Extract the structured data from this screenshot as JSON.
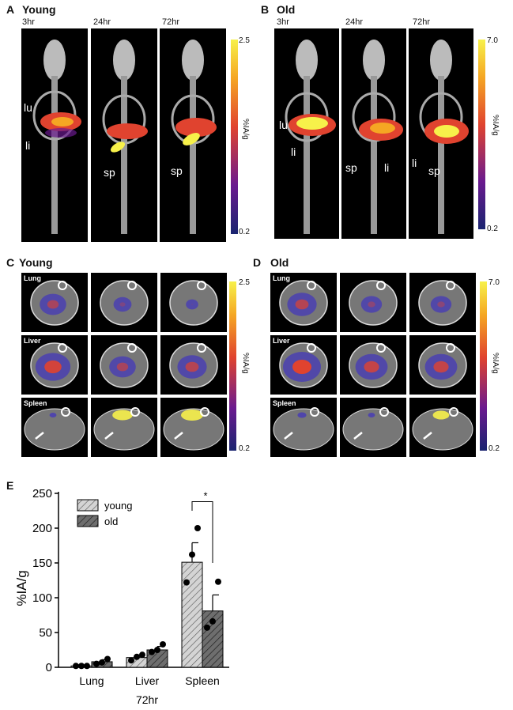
{
  "panels": {
    "A": {
      "letter": "A",
      "title": "Young",
      "times": [
        "3hr",
        "24hr",
        "72hr"
      ],
      "colorbar": {
        "max": "2.5",
        "min": "0.2",
        "label": "%IA/g"
      },
      "organ_labels": {
        "lu": "lu",
        "li": "li",
        "sp": "sp"
      }
    },
    "B": {
      "letter": "B",
      "title": "Old",
      "times": [
        "3hr",
        "24hr",
        "72hr"
      ],
      "colorbar": {
        "max": "7.0",
        "min": "0.2",
        "label": "%IA/g"
      },
      "organ_labels": {
        "lu": "lu",
        "li": "li",
        "sp": "sp"
      }
    },
    "C": {
      "letter": "C",
      "title": "Young",
      "rows": [
        "Lung",
        "Liver",
        "Spleen"
      ],
      "colorbar": {
        "max": "2.5",
        "min": "0.2",
        "label": "%IA/g"
      }
    },
    "D": {
      "letter": "D",
      "title": "Old",
      "rows": [
        "Lung",
        "Liver",
        "Spleen"
      ],
      "colorbar": {
        "max": "7.0",
        "min": "0.2",
        "label": "%IA/g"
      }
    },
    "E": {
      "letter": "E"
    }
  },
  "colors": {
    "colorbar_top": "#f7f14a",
    "colorbar_mid": "#e0432f",
    "colorbar_low": "#6a1a8f",
    "colorbar_bottom": "#1a2470",
    "young_bar": "#c8c8c8",
    "old_bar": "#7a7a7a"
  },
  "chart_data": {
    "type": "bar",
    "categories": [
      "Lung",
      "Liver",
      "Spleen"
    ],
    "xlabel": "72hr",
    "ylabel": "%IA/g",
    "ylim": [
      0,
      250
    ],
    "yticks": [
      0,
      50,
      100,
      150,
      200,
      250
    ],
    "series": [
      {
        "name": "young",
        "values": [
          2,
          14,
          151
        ],
        "errors": [
          1,
          4,
          28
        ],
        "points": [
          [
            2,
            2,
            2
          ],
          [
            10,
            15,
            18
          ],
          [
            122,
            162,
            200
          ]
        ]
      },
      {
        "name": "old",
        "values": [
          8,
          25,
          81
        ],
        "errors": [
          3,
          5,
          23
        ],
        "points": [
          [
            5,
            7,
            12
          ],
          [
            22,
            25,
            33
          ],
          [
            57,
            66,
            123
          ]
        ]
      }
    ],
    "significance": [
      {
        "category": "Spleen",
        "label": "*"
      }
    ],
    "legend_position": "top-left"
  }
}
